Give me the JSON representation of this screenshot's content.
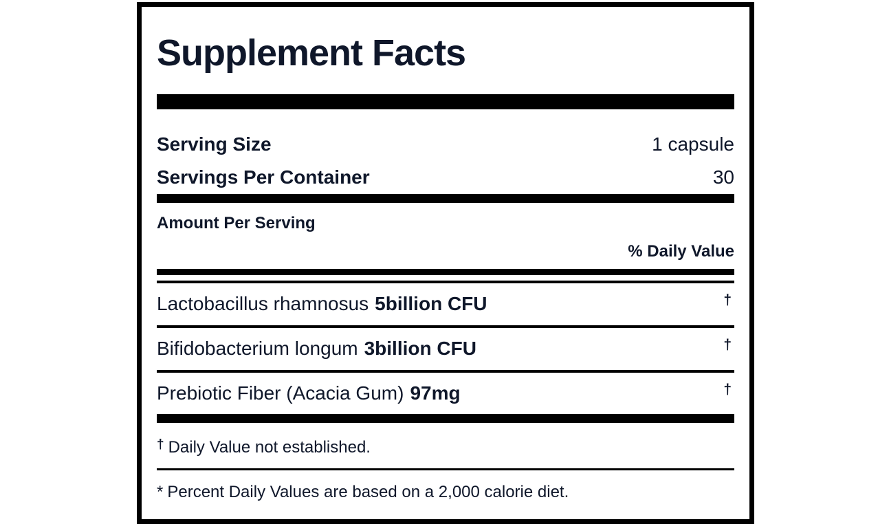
{
  "panel": {
    "title": "Supplement Facts",
    "serving_rows": [
      {
        "label": "Serving Size",
        "value": "1 capsule"
      },
      {
        "label": "Servings Per Container",
        "value": "30"
      }
    ],
    "amount_per_serving_label": "Amount Per Serving",
    "daily_value_header": "% Daily Value",
    "ingredients": [
      {
        "name": "Lactobacillus rhamnosus",
        "amount": "5billion CFU",
        "daily_value_symbol": "†"
      },
      {
        "name": "Bifidobacterium longum",
        "amount": "3billion CFU",
        "daily_value_symbol": "†"
      },
      {
        "name": "Prebiotic Fiber (Acacia Gum)",
        "amount": "97mg",
        "daily_value_symbol": "†"
      }
    ],
    "footnotes": [
      {
        "symbol": "†",
        "text": "Daily Value not established."
      },
      {
        "symbol": "*",
        "text": "Percent Daily Values are based on a 2,000 calorie diet."
      }
    ],
    "colors": {
      "text": "#0f172a",
      "rule": "#000000",
      "border": "#000000",
      "background": "#ffffff"
    }
  }
}
